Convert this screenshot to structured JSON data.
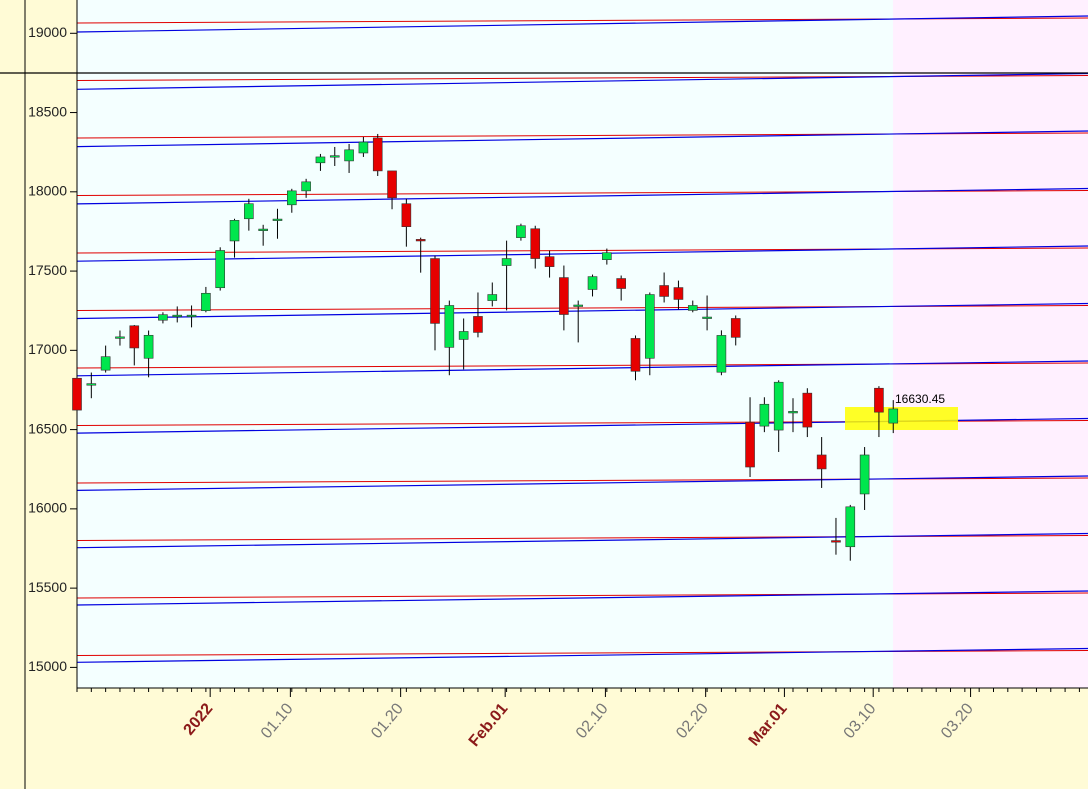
{
  "chart_data": {
    "type": "candlestick",
    "ylim": [
      14870,
      19210
    ],
    "yticks": [
      15000,
      15500,
      16000,
      16500,
      17000,
      17500,
      18000,
      18500,
      19000
    ],
    "xlim": [
      0,
      70.6
    ],
    "xticks": [
      {
        "value": 9.3,
        "label": "2022"
      },
      {
        "value": 14.9,
        "label": "01.10"
      },
      {
        "value": 22.6,
        "label": "01.20"
      },
      {
        "value": 29.9,
        "label": "Feb.01"
      },
      {
        "value": 36.9,
        "label": "02.10"
      },
      {
        "value": 43.9,
        "label": "02.20"
      },
      {
        "value": 49.4,
        "label": "Mar.01"
      },
      {
        "value": 55.6,
        "label": "03.10"
      },
      {
        "value": 62.4,
        "label": "03.20"
      }
    ],
    "up_color": "#00e64d",
    "down_color": "#e60000",
    "open": [
      16824,
      16780,
      16875,
      17080,
      17155,
      16950,
      17190,
      17218,
      17220,
      17250,
      17395,
      17690,
      17830,
      17755,
      17820,
      17918,
      18006,
      18183,
      18225,
      18195,
      18245,
      18340,
      18132,
      17925,
      17700,
      17579,
      17019,
      17069,
      17214,
      17314,
      17535,
      17711,
      17767,
      17591,
      17459,
      17280,
      17384,
      17572,
      17453,
      17075,
      16950,
      17409,
      17396,
      17252,
      17206,
      16862,
      17201,
      16547,
      16522,
      16497,
      16605,
      16730,
      16340,
      15800,
      15761,
      16094,
      16761,
      16541
    ],
    "high": [
      16830,
      16860,
      17030,
      17125,
      17160,
      17125,
      17240,
      17277,
      17283,
      17400,
      17650,
      17830,
      17956,
      17792,
      17893,
      18019,
      18082,
      18239,
      18283,
      18302,
      18346,
      18365,
      18132,
      17956,
      17711,
      17597,
      17314,
      17201,
      17365,
      17428,
      17692,
      17799,
      17786,
      17629,
      17535,
      17314,
      17478,
      17642,
      17472,
      17094,
      17365,
      17491,
      17440,
      17314,
      17346,
      17126,
      17220,
      16704,
      16704,
      16811,
      16698,
      16761,
      16453,
      15943,
      16025,
      16390,
      16774,
      16686
    ],
    "low": [
      16400,
      16698,
      16860,
      17030,
      16905,
      16830,
      17170,
      17176,
      17145,
      17240,
      17377,
      17585,
      17755,
      17660,
      17704,
      17868,
      17962,
      18132,
      18163,
      18119,
      18220,
      18100,
      17890,
      17654,
      17490,
      17000,
      16843,
      16880,
      17082,
      17277,
      17252,
      17692,
      17516,
      17459,
      17126,
      17050,
      17340,
      17541,
      17314,
      16811,
      16843,
      17302,
      17258,
      17240,
      17126,
      16843,
      17031,
      16201,
      16484,
      16359,
      16484,
      16453,
      16132,
      15711,
      15673,
      15993,
      16453,
      16478
    ],
    "close": [
      16623,
      16790,
      16960,
      17085,
      17015,
      17095,
      17225,
      17222,
      17222,
      17360,
      17630,
      17820,
      17925,
      17765,
      17828,
      18006,
      18063,
      18220,
      18228,
      18265,
      18314,
      18132,
      17962,
      17780,
      17690,
      17170,
      17283,
      17119,
      17113,
      17352,
      17579,
      17786,
      17579,
      17528,
      17226,
      17286,
      17465,
      17616,
      17390,
      16868,
      17352,
      17340,
      17321,
      17283,
      17210,
      17094,
      17082,
      16264,
      16660,
      16799,
      16615,
      16516,
      16252,
      15790,
      16013,
      16340,
      16610,
      16630.45
    ],
    "annotation": "16630.45"
  }
}
